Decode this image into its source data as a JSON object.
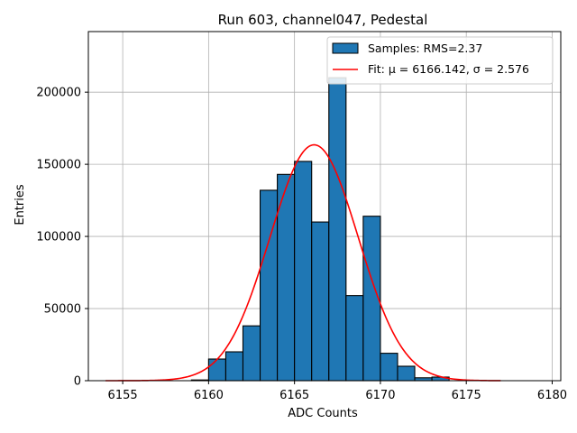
{
  "chart_data": {
    "type": "bar",
    "title": "Run 603, channel047, Pedestal",
    "xlabel": "ADC Counts",
    "ylabel": "Entries",
    "xlim": [
      6153,
      6180.5
    ],
    "ylim": [
      0,
      242000
    ],
    "xticks": [
      6155,
      6160,
      6165,
      6170,
      6175,
      6180
    ],
    "yticks": [
      0,
      50000,
      100000,
      150000,
      200000
    ],
    "grid": true,
    "legend_position": "top-right",
    "bin_width": 1,
    "bins": [
      {
        "x0": 6159,
        "value": 500
      },
      {
        "x0": 6160,
        "value": 15000
      },
      {
        "x0": 6161,
        "value": 20000
      },
      {
        "x0": 6162,
        "value": 38000
      },
      {
        "x0": 6163,
        "value": 132000
      },
      {
        "x0": 6164,
        "value": 143000
      },
      {
        "x0": 6165,
        "value": 152000
      },
      {
        "x0": 6166,
        "value": 110000
      },
      {
        "x0": 6167,
        "value": 210000
      },
      {
        "x0": 6168,
        "value": 59000
      },
      {
        "x0": 6169,
        "value": 114000
      },
      {
        "x0": 6170,
        "value": 19000
      },
      {
        "x0": 6171,
        "value": 10000
      },
      {
        "x0": 6172,
        "value": 2000
      },
      {
        "x0": 6173,
        "value": 2500
      }
    ],
    "fit": {
      "mu": 6166.142,
      "sigma": 2.576,
      "amplitude": 163500,
      "x_range": [
        6154,
        6177
      ]
    },
    "series": [
      {
        "name": "Samples: RMS=2.37",
        "kind": "histogram",
        "color": "#1f77b4"
      },
      {
        "name": "Fit: μ = 6166.142, σ = 2.576",
        "kind": "line",
        "color": "#ff0000"
      }
    ]
  }
}
